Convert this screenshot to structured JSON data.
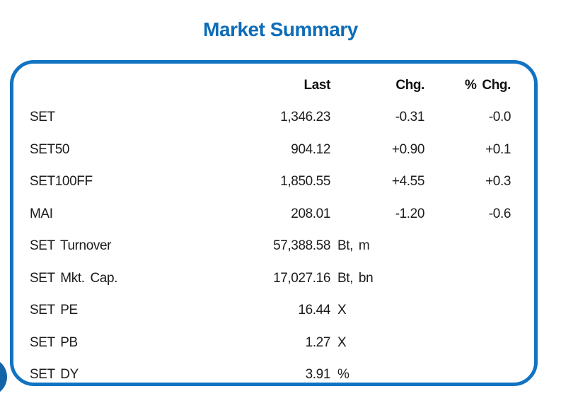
{
  "page": {
    "title": "Market Summary"
  },
  "colors": {
    "title_blue": "#0d6cb8",
    "border_blue": "#1173c2",
    "circle_blue": "#1365a8",
    "text": "#1c1c1c"
  },
  "table": {
    "headers": {
      "last": "Last",
      "chg": "Chg.",
      "pct_chg": "% Chg."
    },
    "rows": [
      {
        "label": "SET",
        "last": "1,346.23",
        "unit": "",
        "chg": "-0.31",
        "pct": "-0.0"
      },
      {
        "label": "SET50",
        "last": "904.12",
        "unit": "",
        "chg": "+0.90",
        "pct": "+0.1"
      },
      {
        "label": "SET100FF",
        "last": "1,850.55",
        "unit": "",
        "chg": "+4.55",
        "pct": "+0.3"
      },
      {
        "label": "MAI",
        "last": "208.01",
        "unit": "",
        "chg": "-1.20",
        "pct": "-0.6"
      },
      {
        "label": "SET Turnover",
        "last": "57,388.58",
        "unit": "Bt, m",
        "chg": "",
        "pct": ""
      },
      {
        "label": "SET Mkt. Cap.",
        "last": "17,027.16",
        "unit": "Bt, bn",
        "chg": "",
        "pct": ""
      },
      {
        "label": "SET PE",
        "last": "16.44",
        "unit": "X",
        "chg": "",
        "pct": ""
      },
      {
        "label": "SET PB",
        "last": "1.27",
        "unit": "X",
        "chg": "",
        "pct": ""
      },
      {
        "label": "SET DY",
        "last": "3.91",
        "unit": "%",
        "chg": "",
        "pct": ""
      }
    ]
  }
}
